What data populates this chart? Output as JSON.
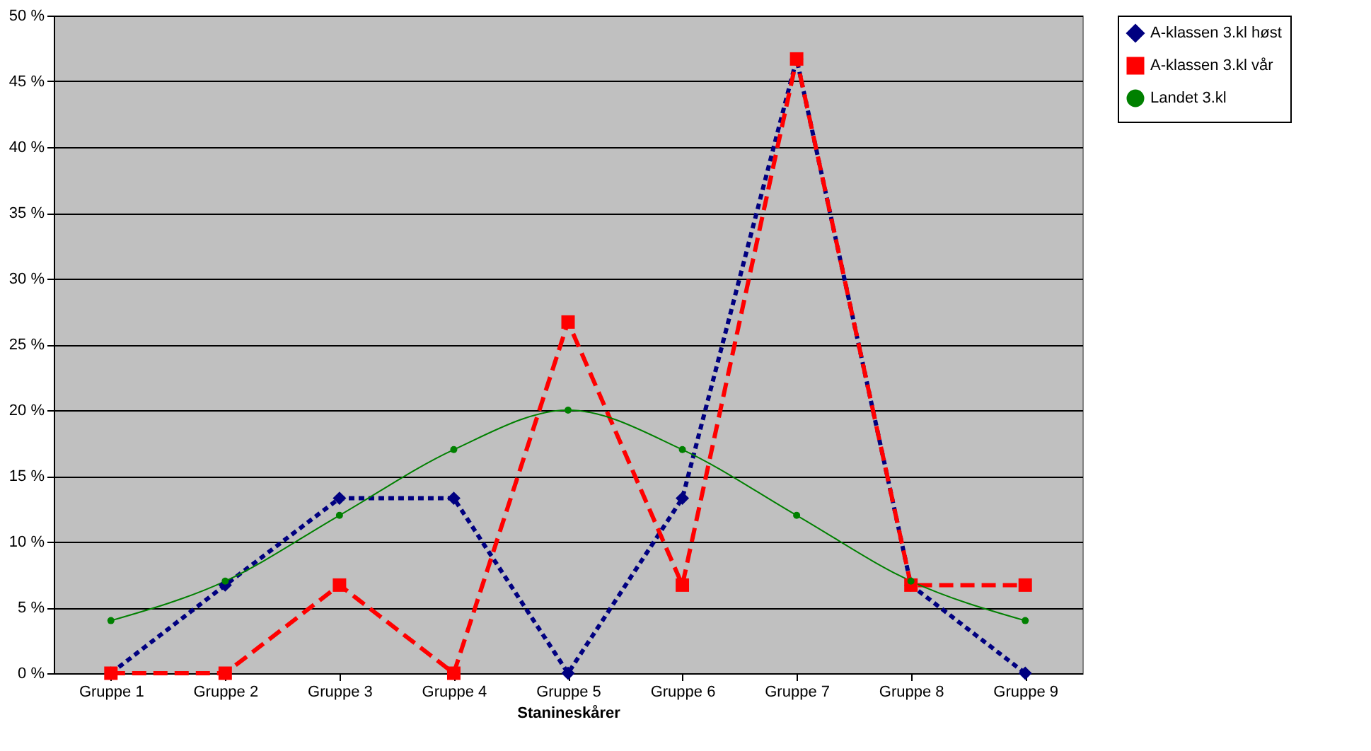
{
  "chart_data": {
    "type": "line",
    "xlabel": "Stanineskårer",
    "categories": [
      "Gruppe 1",
      "Gruppe 2",
      "Gruppe 3",
      "Gruppe 4",
      "Gruppe 5",
      "Gruppe 6",
      "Gruppe 7",
      "Gruppe 8",
      "Gruppe 9"
    ],
    "series": [
      {
        "name": "A-klassen 3.kl høst",
        "color": "#000080",
        "marker": "diamond",
        "line_style": "dotted",
        "values": [
          0,
          6.7,
          13.3,
          13.3,
          0,
          13.3,
          46.7,
          6.7,
          0
        ]
      },
      {
        "name": "A-klassen 3.kl vår",
        "color": "#ff0000",
        "marker": "square",
        "line_style": "dashed",
        "values": [
          0,
          0,
          6.7,
          0,
          26.7,
          6.7,
          46.7,
          6.7,
          6.7
        ]
      },
      {
        "name": "Landet 3.kl",
        "color": "#008000",
        "marker": "circle",
        "line_style": "solid",
        "values": [
          4,
          7,
          12,
          17,
          20,
          17,
          12,
          7,
          4
        ]
      }
    ],
    "ylim": [
      0,
      50
    ],
    "yticks": [
      {
        "value": 0,
        "label": "0 %"
      },
      {
        "value": 5,
        "label": "5 %"
      },
      {
        "value": 10,
        "label": "10 %"
      },
      {
        "value": 15,
        "label": "15 %"
      },
      {
        "value": 20,
        "label": "20 %"
      },
      {
        "value": 25,
        "label": "25 %"
      },
      {
        "value": 30,
        "label": "30 %"
      },
      {
        "value": 35,
        "label": "35 %"
      },
      {
        "value": 40,
        "label": "40 %"
      },
      {
        "value": 45,
        "label": "45 %"
      },
      {
        "value": 50,
        "label": "50 %"
      }
    ],
    "grid": "y",
    "legend": "right"
  }
}
